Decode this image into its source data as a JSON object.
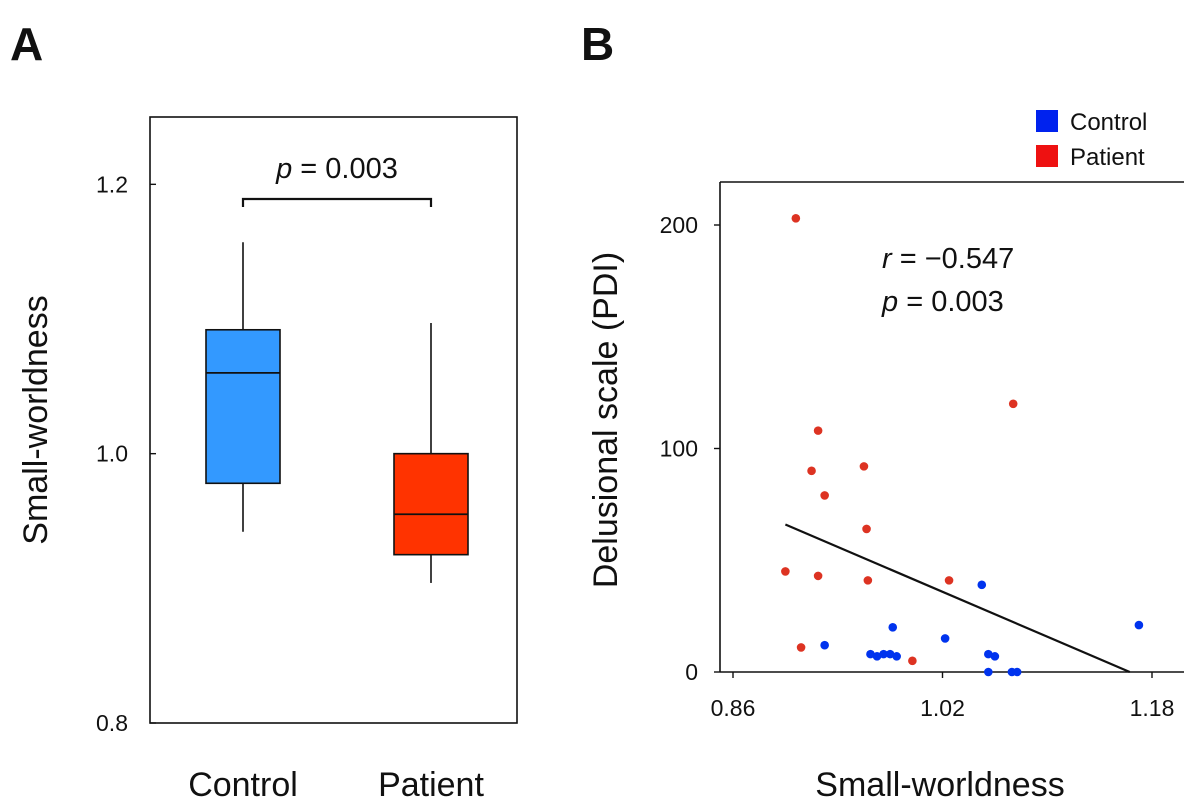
{
  "panels": {
    "a": {
      "letter": "A"
    },
    "b": {
      "letter": "B"
    }
  },
  "chart_data": [
    {
      "type": "box",
      "ylabel": "Small-worldness",
      "ylim": [
        0.8,
        1.25
      ],
      "yticks": [
        {
          "value": 0.8,
          "label": "0.8"
        },
        {
          "value": 1.0,
          "label": "1.0"
        },
        {
          "value": 1.2,
          "label": "1.2"
        }
      ],
      "categories": [
        "Control",
        "Patient"
      ],
      "boxes": [
        {
          "name": "Control",
          "whisker_low": 0.942,
          "q1": 0.978,
          "median": 1.06,
          "q3": 1.092,
          "whisker_high": 1.157,
          "color": "#3399ff"
        },
        {
          "name": "Patient",
          "whisker_low": 0.904,
          "q1": 0.925,
          "median": 0.955,
          "q3": 1.0,
          "whisker_high": 1.097,
          "color": "#ff3300"
        }
      ],
      "annotation": {
        "p_symbol": "p",
        "p_text": " = 0.003"
      },
      "grid": false
    },
    {
      "type": "scatter",
      "xlabel": "Small-worldness",
      "ylabel": "Delusional scale (PDI)",
      "xlim": [
        0.86,
        1.2
      ],
      "ylim": [
        0,
        220
      ],
      "xticks": [
        {
          "value": 0.86,
          "label": "0.86"
        },
        {
          "value": 1.02,
          "label": "1.02"
        },
        {
          "value": 1.18,
          "label": "1.18"
        }
      ],
      "yticks": [
        {
          "value": 0,
          "label": "0"
        },
        {
          "value": 100,
          "label": "100"
        },
        {
          "value": 200,
          "label": "200"
        }
      ],
      "legend_position": "top-right",
      "series": [
        {
          "name": "Control",
          "color": "#0033ee",
          "points": [
            [
              0.93,
              12
            ],
            [
              0.965,
              8
            ],
            [
              0.97,
              7
            ],
            [
              0.975,
              8
            ],
            [
              0.98,
              8
            ],
            [
              0.982,
              20
            ],
            [
              0.985,
              7
            ],
            [
              1.022,
              15
            ],
            [
              1.05,
              39
            ],
            [
              1.055,
              8
            ],
            [
              1.055,
              0
            ],
            [
              1.06,
              7
            ],
            [
              1.073,
              0
            ],
            [
              1.077,
              0
            ],
            [
              1.17,
              21
            ]
          ]
        },
        {
          "name": "Patient",
          "color": "#dd3322",
          "points": [
            [
              0.9,
              45
            ],
            [
              0.908,
              203
            ],
            [
              0.912,
              11
            ],
            [
              0.92,
              90
            ],
            [
              0.925,
              108
            ],
            [
              0.925,
              43
            ],
            [
              0.93,
              79
            ],
            [
              0.96,
              92
            ],
            [
              0.962,
              64
            ],
            [
              0.963,
              41
            ],
            [
              0.997,
              5
            ],
            [
              1.025,
              41
            ],
            [
              1.074,
              120
            ]
          ]
        }
      ],
      "regression": {
        "x": [
          0.9,
          1.163
        ],
        "y": [
          66,
          0
        ]
      },
      "annotation": {
        "r_symbol": "r",
        "r_text": " = −0.547",
        "p_symbol": "p",
        "p_text": " = 0.003"
      },
      "grid": false
    }
  ]
}
